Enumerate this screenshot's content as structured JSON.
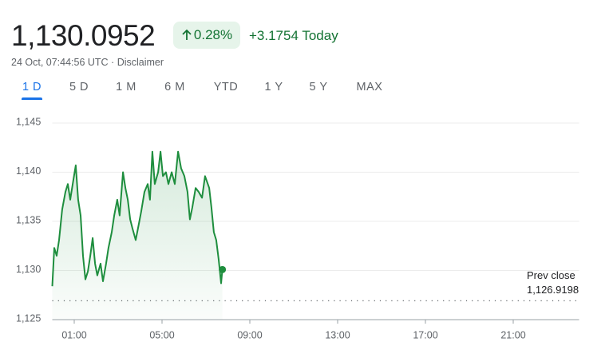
{
  "header": {
    "price": "1,130.0952",
    "change_percent": "0.28%",
    "change_today": "+3.1754 Today",
    "timestamp": "24 Oct, 07:44:56 UTC · Disclaimer"
  },
  "ranges": [
    "1 D",
    "5 D",
    "1 M",
    "6 M",
    "YTD",
    "1 Y",
    "5 Y",
    "MAX"
  ],
  "active_range": 0,
  "chart_data": {
    "type": "line",
    "x": [
      0,
      0.09,
      0.2,
      0.31,
      0.45,
      0.6,
      0.71,
      0.82,
      0.96,
      1.07,
      1.18,
      1.29,
      1.4,
      1.51,
      1.62,
      1.73,
      1.84,
      1.95,
      2.05,
      2.2,
      2.31,
      2.45,
      2.56,
      2.71,
      2.82,
      2.96,
      3.07,
      3.22,
      3.33,
      3.44,
      3.55,
      3.65,
      3.8,
      3.95,
      4.05,
      4.2,
      4.35,
      4.45,
      4.56,
      4.67,
      4.82,
      4.93,
      5.04,
      5.18,
      5.29,
      5.44,
      5.58,
      5.73,
      5.87,
      6.02,
      6.16,
      6.27,
      6.38,
      6.53,
      6.67,
      6.82,
      6.96,
      7.15,
      7.25,
      7.36,
      7.47,
      7.58,
      7.69,
      7.75
    ],
    "series": [
      {
        "name": "Price",
        "color": "#1e8e3e",
        "values": [
          1128.4,
          1132.3,
          1131.5,
          1133.1,
          1136.2,
          1138.0,
          1138.8,
          1137.2,
          1139.2,
          1140.7,
          1137.2,
          1135.6,
          1131.5,
          1129.1,
          1129.9,
          1131.5,
          1133.3,
          1130.7,
          1129.5,
          1130.7,
          1128.9,
          1130.7,
          1132.3,
          1133.9,
          1135.6,
          1137.2,
          1135.6,
          1140.0,
          1138.4,
          1137.2,
          1135.2,
          1134.3,
          1133.1,
          1134.8,
          1136.0,
          1138.0,
          1138.8,
          1137.2,
          1142.1,
          1138.8,
          1140.0,
          1142.1,
          1139.6,
          1140.0,
          1138.8,
          1140.0,
          1138.8,
          1142.1,
          1140.4,
          1139.6,
          1138.0,
          1135.2,
          1136.4,
          1138.4,
          1138.0,
          1137.4,
          1139.6,
          1138.4,
          1136.4,
          1133.9,
          1133.1,
          1131.1,
          1128.7,
          1130.0952
        ]
      }
    ],
    "xlim": [
      0,
      24
    ],
    "xticks": [
      {
        "value": 1,
        "label": "01:00"
      },
      {
        "value": 5,
        "label": "05:00"
      },
      {
        "value": 9,
        "label": "09:00"
      },
      {
        "value": 13,
        "label": "13:00"
      },
      {
        "value": 17,
        "label": "17:00"
      },
      {
        "value": 21,
        "label": "21:00"
      }
    ],
    "ylim": [
      1125,
      1145
    ],
    "yticks": [
      {
        "value": 1125,
        "label": "1,125"
      },
      {
        "value": 1130,
        "label": "1,130"
      },
      {
        "value": 1135,
        "label": "1,135"
      },
      {
        "value": 1140,
        "label": "1,140"
      },
      {
        "value": 1145,
        "label": "1,145"
      }
    ],
    "grid": true,
    "prev_close": {
      "label": "Prev close",
      "value": 1126.9198,
      "value_label": "1,126.9198"
    }
  }
}
